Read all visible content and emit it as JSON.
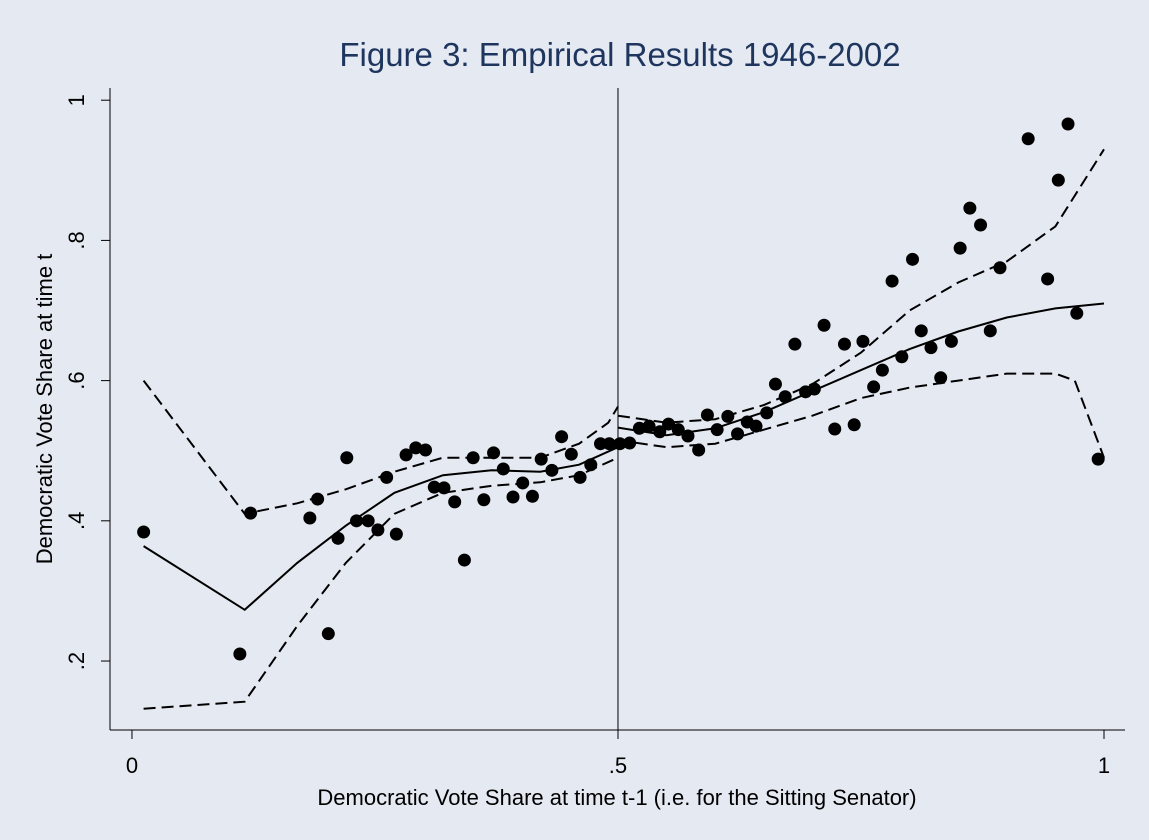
{
  "chart_data": {
    "type": "scatter",
    "title": "Figure 3: Empirical Results 1946-2002",
    "x_label": "Democratic Vote Share at time t-1 (i.e. for the Sitting Senator)",
    "y_label": "Democratic Vote Share at time t",
    "xlim": [
      -0.0226,
      1.0216
    ],
    "ylim": [
      0.1016,
      1.0174
    ],
    "xticks": [
      0,
      {
        "value": 0.5,
        "label": ".5"
      },
      1
    ],
    "yticks": [
      {
        "value": 0.2,
        "label": ".2"
      },
      {
        "value": 0.4,
        "label": ".4"
      },
      {
        "value": 0.6,
        "label": ".6"
      },
      {
        "value": 0.8,
        "label": ".8"
      },
      {
        "value": 1,
        "label": "1"
      }
    ],
    "vline": 0.5,
    "color": "#000000",
    "x": [
      0.012,
      0.111,
      0.122,
      0.183,
      0.191,
      0.212,
      0.202,
      0.221,
      0.231,
      0.243,
      0.253,
      0.262,
      0.272,
      0.282,
      0.292,
      0.302,
      0.311,
      0.321,
      0.332,
      0.342,
      0.351,
      0.362,
      0.372,
      0.382,
      0.392,
      0.402,
      0.412,
      0.421,
      0.432,
      0.442,
      0.452,
      0.461,
      0.472,
      0.482,
      0.491,
      0.502,
      0.512,
      0.522,
      0.532,
      0.543,
      0.552,
      0.562,
      0.572,
      0.583,
      0.592,
      0.602,
      0.613,
      0.623,
      0.633,
      0.642,
      0.653,
      0.662,
      0.672,
      0.682,
      0.693,
      0.702,
      0.712,
      0.723,
      0.733,
      0.743,
      0.752,
      0.763,
      0.772,
      0.782,
      0.792,
      0.803,
      0.812,
      0.822,
      0.832,
      0.843,
      0.852,
      0.862,
      0.873,
      0.883,
      0.893,
      0.922,
      0.942,
      0.953,
      0.963,
      0.972,
      0.994
    ],
    "values": [
      0.384,
      0.21,
      0.411,
      0.404,
      0.431,
      0.375,
      0.239,
      0.49,
      0.4,
      0.4,
      0.387,
      0.462,
      0.381,
      0.494,
      0.504,
      0.501,
      0.448,
      0.447,
      0.427,
      0.344,
      0.49,
      0.43,
      0.497,
      0.474,
      0.434,
      0.454,
      0.435,
      0.488,
      0.472,
      0.52,
      0.495,
      0.462,
      0.48,
      0.51,
      0.51,
      0.51,
      0.511,
      0.532,
      0.535,
      0.527,
      0.538,
      0.53,
      0.521,
      0.501,
      0.551,
      0.53,
      0.549,
      0.524,
      0.541,
      0.535,
      0.554,
      0.595,
      0.577,
      0.652,
      0.584,
      0.588,
      0.679,
      0.531,
      0.652,
      0.537,
      0.656,
      0.591,
      0.615,
      0.742,
      0.634,
      0.773,
      0.671,
      0.647,
      0.604,
      0.656,
      0.789,
      0.846,
      0.822,
      0.671,
      0.761,
      0.945,
      0.745,
      0.886,
      0.966,
      0.696,
      0.488
    ],
    "lines": [
      {
        "style": "solid",
        "x": [
          0.012,
          0.116,
          0.17,
          0.22,
          0.27,
          0.32,
          0.37,
          0.42,
          0.46,
          0.5
        ],
        "y": [
          0.364,
          0.273,
          0.34,
          0.393,
          0.44,
          0.465,
          0.472,
          0.47,
          0.48,
          0.505
        ]
      },
      {
        "style": "solid",
        "x": [
          0.5,
          0.55,
          0.6,
          0.65,
          0.7,
          0.75,
          0.8,
          0.85,
          0.9,
          0.95,
          1.0
        ],
        "y": [
          0.533,
          0.522,
          0.532,
          0.555,
          0.585,
          0.615,
          0.645,
          0.67,
          0.69,
          0.703,
          0.71
        ]
      },
      {
        "style": "dash",
        "x": [
          0.012,
          0.116,
          0.17,
          0.22,
          0.27,
          0.32,
          0.37,
          0.42,
          0.46,
          0.49,
          0.5
        ],
        "y": [
          0.6,
          0.41,
          0.425,
          0.445,
          0.47,
          0.49,
          0.49,
          0.49,
          0.51,
          0.54,
          0.563
        ]
      },
      {
        "style": "dash",
        "x": [
          0.012,
          0.116,
          0.17,
          0.22,
          0.27,
          0.32,
          0.37,
          0.42,
          0.46,
          0.5
        ],
        "y": [
          0.132,
          0.142,
          0.25,
          0.34,
          0.41,
          0.44,
          0.45,
          0.455,
          0.465,
          0.49
        ]
      },
      {
        "style": "dash",
        "x": [
          0.5,
          0.55,
          0.6,
          0.65,
          0.7,
          0.75,
          0.8,
          0.85,
          0.9,
          0.95,
          1.0
        ],
        "y": [
          0.55,
          0.54,
          0.545,
          0.565,
          0.595,
          0.64,
          0.7,
          0.74,
          0.77,
          0.82,
          0.93
        ]
      },
      {
        "style": "dash",
        "x": [
          0.5,
          0.55,
          0.6,
          0.65,
          0.7,
          0.75,
          0.8,
          0.85,
          0.9,
          0.95,
          0.97,
          1.0
        ],
        "y": [
          0.515,
          0.505,
          0.51,
          0.53,
          0.55,
          0.575,
          0.59,
          0.6,
          0.61,
          0.61,
          0.6,
          0.49
        ]
      }
    ]
  }
}
